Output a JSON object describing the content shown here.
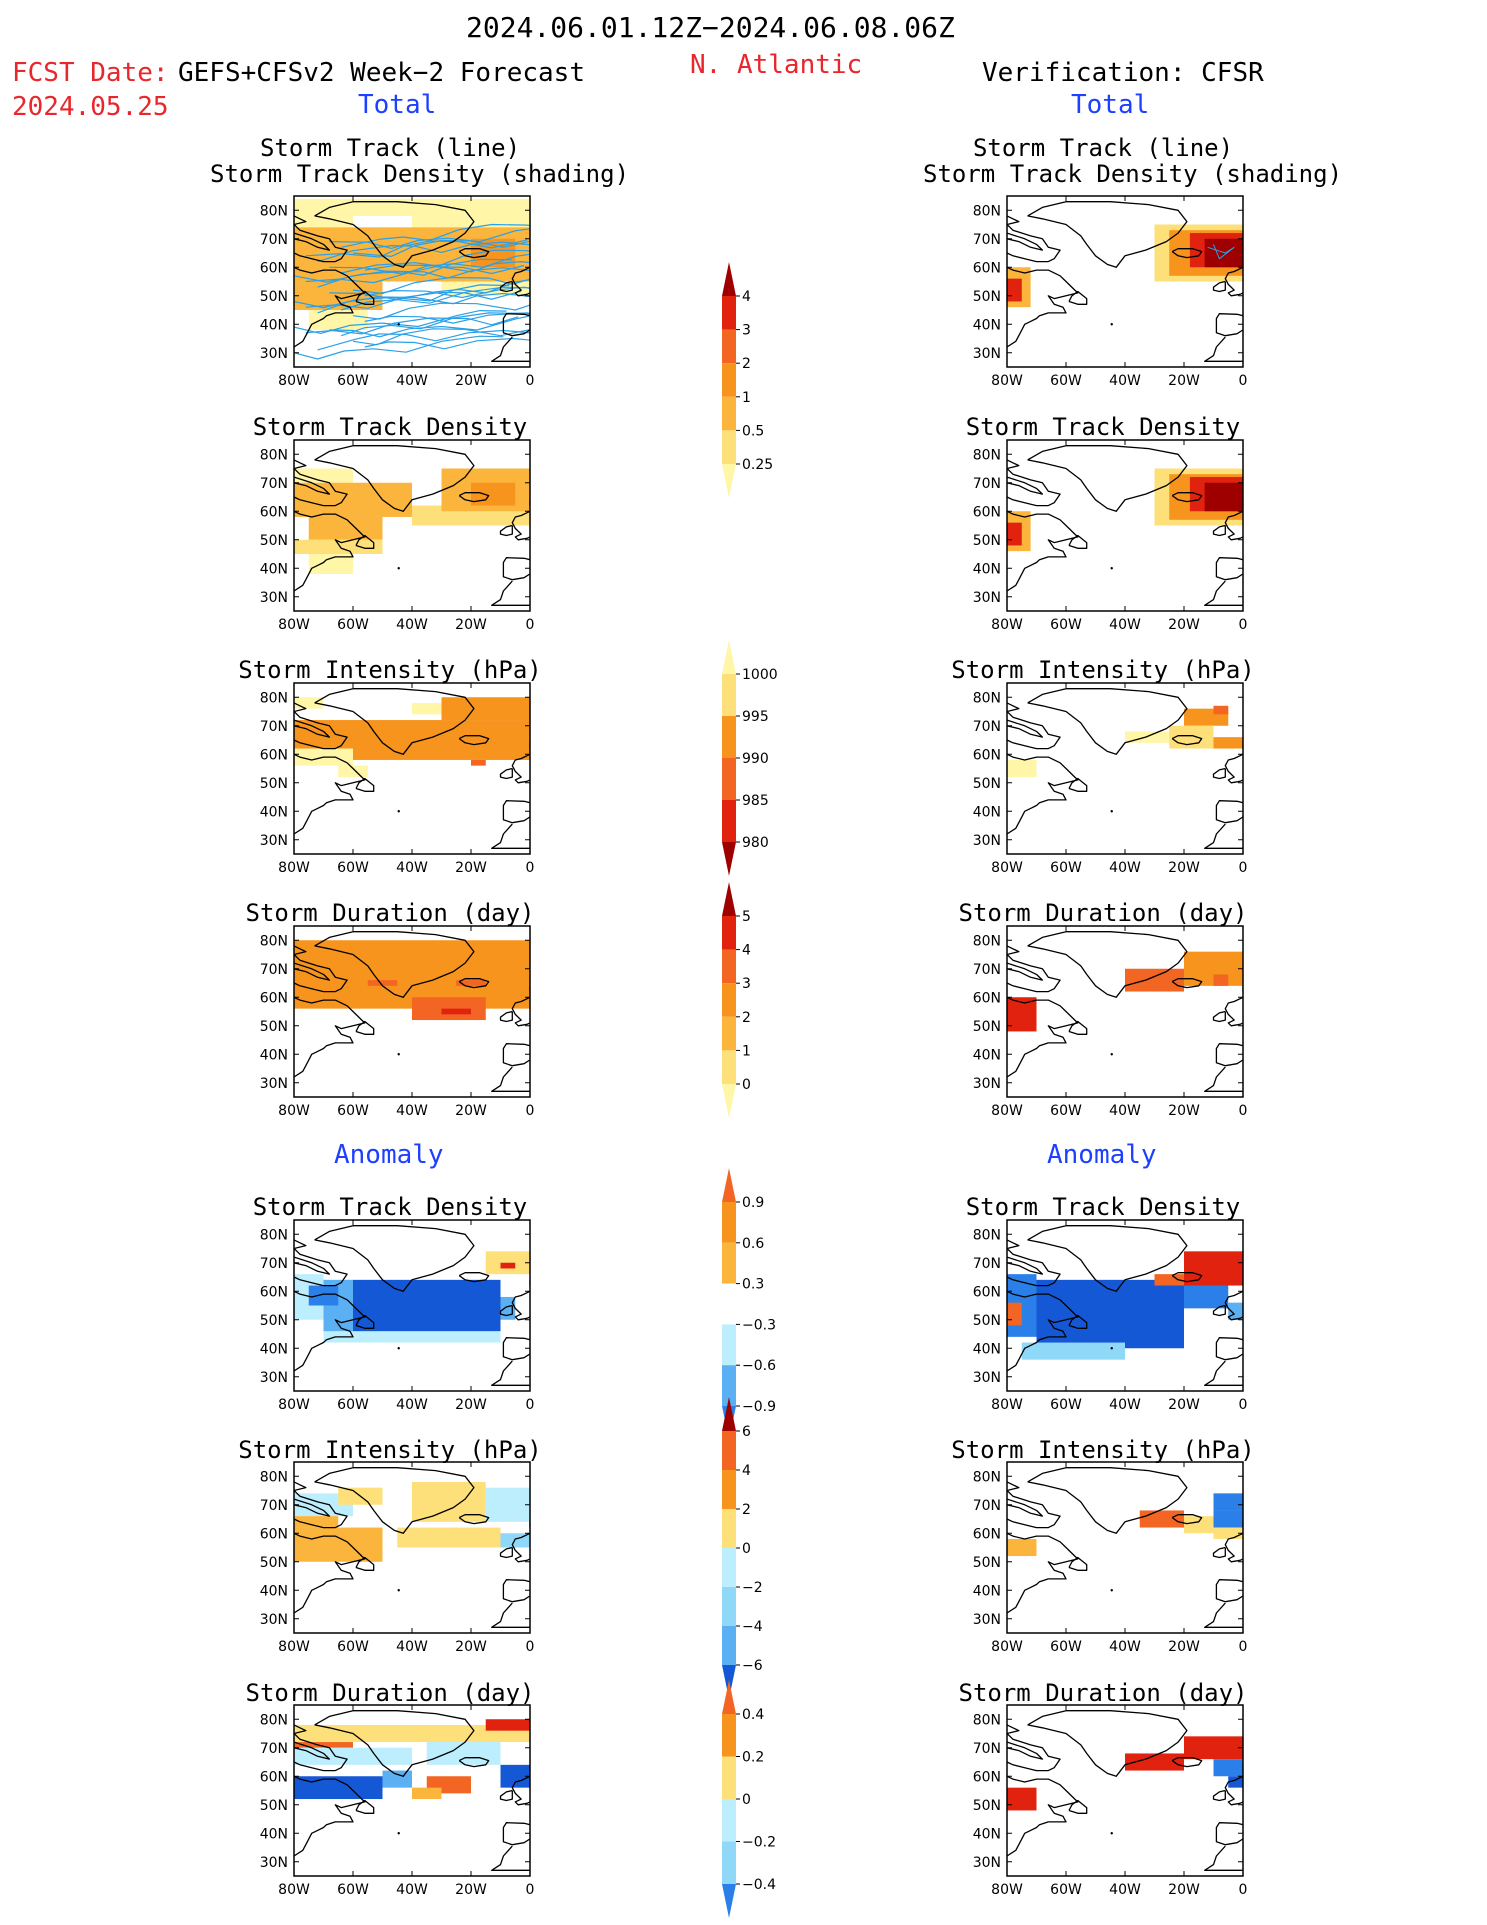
{
  "header": {
    "date_range": "2024.06.01.12Z−2024.06.08.06Z",
    "fcst_label": "FCST Date:",
    "fcst_model": "GEFS+CFSv2 Week−2 Forecast",
    "fcst_date": "2024.05.25",
    "region": "N. Atlantic",
    "verification": "Verification: CFSR",
    "left_section_total": "Total",
    "right_section_total": "Total",
    "left_section_anomaly": "Anomaly",
    "right_section_anomaly": "Anomaly"
  },
  "colors": {
    "red_text": "#e8262b",
    "blue_text": "#1d3fff",
    "track_line": "#2aa0e8",
    "pos": [
      "#fff6a8",
      "#fde07a",
      "#fbb43c",
      "#f7941d",
      "#f26522",
      "#e0220f",
      "#9e0000"
    ],
    "neg": [
      "#bdeefd",
      "#8fd8f8",
      "#5ab0f2",
      "#2b7fe8",
      "#1558d6"
    ]
  },
  "axes": {
    "lat_labels": [
      "80N",
      "70N",
      "60N",
      "50N",
      "40N",
      "30N"
    ],
    "lon_labels": [
      "80W",
      "60W",
      "40W",
      "20W",
      "0"
    ]
  },
  "rows": [
    {
      "id": "track",
      "title": "Storm Track (line)",
      "title2": "Storm Track Density (shading)"
    },
    {
      "id": "density",
      "title": "Storm Track Density"
    },
    {
      "id": "intensity",
      "title": "Storm Intensity (hPa)"
    },
    {
      "id": "duration",
      "title": "Storm Duration (day)"
    },
    {
      "id": "anom_density",
      "title": "Storm Track Density"
    },
    {
      "id": "anom_intensity",
      "title": "Storm Intensity (hPa)"
    },
    {
      "id": "anom_duration",
      "title": "Storm Duration (day)"
    }
  ],
  "colorbars": [
    {
      "id": "cb-density",
      "labels": [
        "4",
        "3",
        "2",
        "1",
        "0.5",
        "0.25"
      ]
    },
    {
      "id": "cb-intensity",
      "labels": [
        "1000",
        "995",
        "990",
        "985",
        "980"
      ]
    },
    {
      "id": "cb-duration",
      "labels": [
        "5",
        "4",
        "3",
        "2",
        "1",
        "0"
      ]
    },
    {
      "id": "cb-anom-density",
      "labels": [
        "0.9",
        "0.6",
        "0.3",
        "−0.3",
        "−0.6",
        "−0.9"
      ]
    },
    {
      "id": "cb-anom-intensity",
      "labels": [
        "6",
        "4",
        "2",
        "0",
        "−2",
        "−4",
        "−6"
      ]
    },
    {
      "id": "cb-anom-duration",
      "labels": [
        "0.4",
        "0.2",
        "0",
        "−0.2",
        "−0.4"
      ]
    }
  ]
}
